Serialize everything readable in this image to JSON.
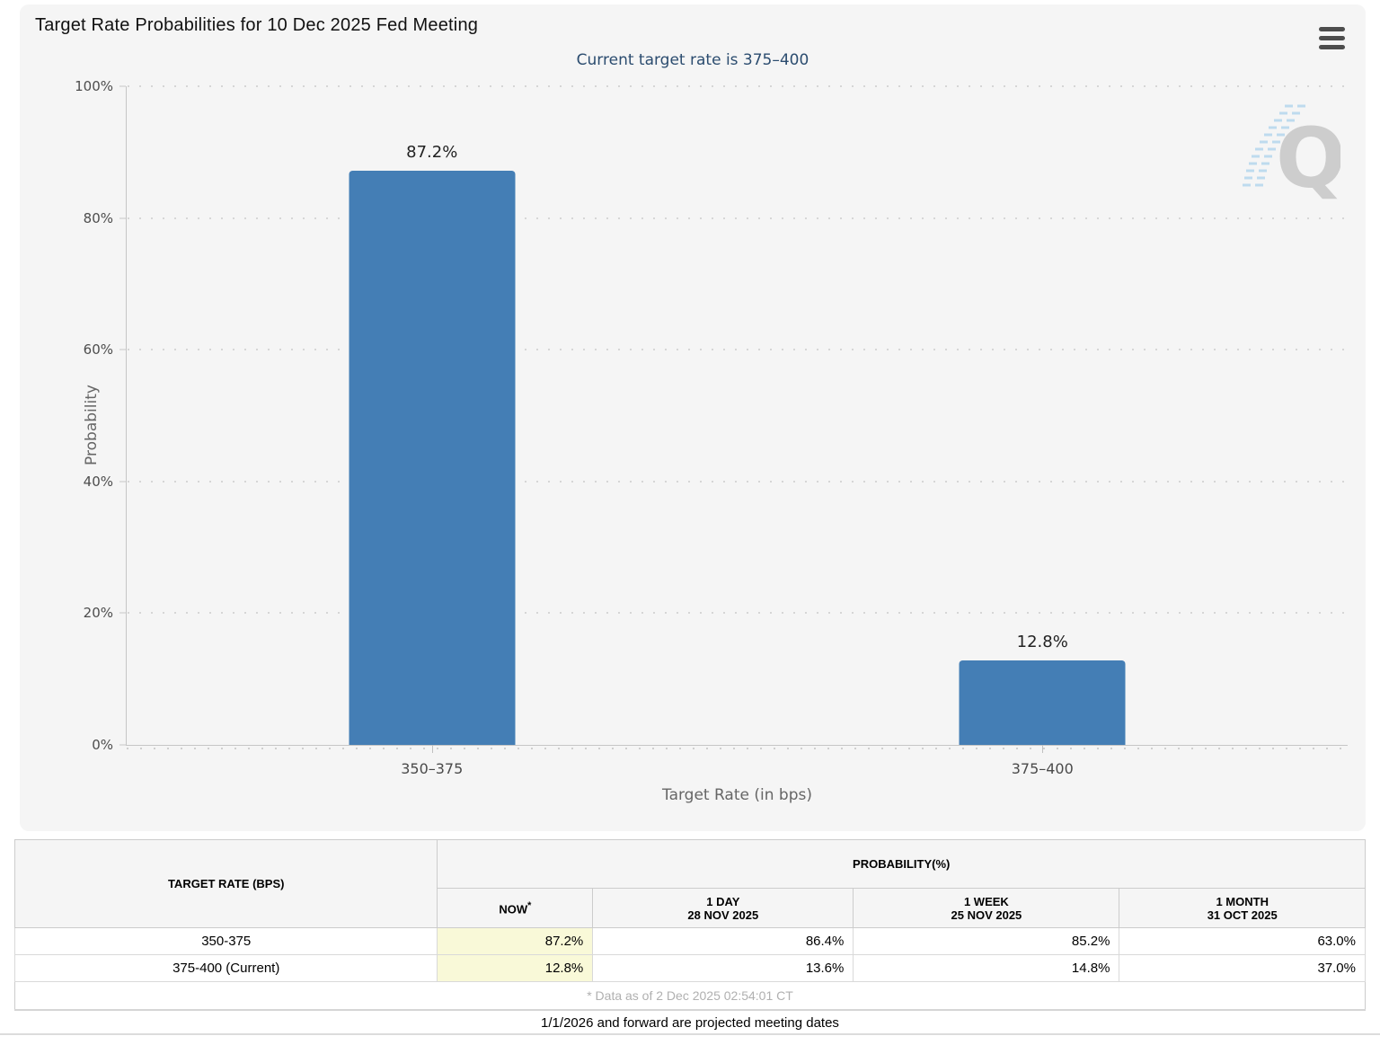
{
  "chart": {
    "title": "Target Rate Probabilities for 10 Dec 2025 Fed Meeting",
    "subtitle": "Current target rate is 375–400",
    "menu_icon": "hamburger-menu-icon",
    "watermark": "quikstrike-q-logo"
  },
  "chart_data": {
    "type": "bar",
    "title": "Target Rate Probabilities for 10 Dec 2025 Fed Meeting",
    "subtitle": "Current target rate is 375–400",
    "categories": [
      "350–375",
      "375–400"
    ],
    "values": [
      87.2,
      12.8
    ],
    "value_labels": [
      "87.2%",
      "12.8%"
    ],
    "xlabel": "Target Rate (in bps)",
    "ylabel": "Probability",
    "ylim": [
      0,
      100
    ],
    "yticks": [
      "100%",
      "80%",
      "60%",
      "40%",
      "20%",
      "0%"
    ],
    "grid": "dotted horizontal",
    "bar_color": "#447EB5",
    "legend": "none"
  },
  "table": {
    "col_rate_header": "TARGET RATE (BPS)",
    "group_header": "PROBABILITY(%)",
    "now_label": "NOW",
    "now_asterisk": "*",
    "columns": [
      {
        "label": "1 DAY",
        "date": "28 NOV 2025"
      },
      {
        "label": "1 WEEK",
        "date": "25 NOV 2025"
      },
      {
        "label": "1 MONTH",
        "date": "31 OCT 2025"
      }
    ],
    "rows": [
      {
        "rate": "350-375",
        "now": "87.2%",
        "day": "86.4%",
        "week": "85.2%",
        "month": "63.0%"
      },
      {
        "rate": "375-400 (Current)",
        "now": "12.8%",
        "day": "13.6%",
        "week": "14.8%",
        "month": "37.0%"
      }
    ],
    "footnote": "* Data as of 2 Dec 2025 02:54:01 CT",
    "now_highlight_color": "#f9f9d8"
  },
  "footer": {
    "note": "1/1/2026 and forward are projected meeting dates"
  }
}
